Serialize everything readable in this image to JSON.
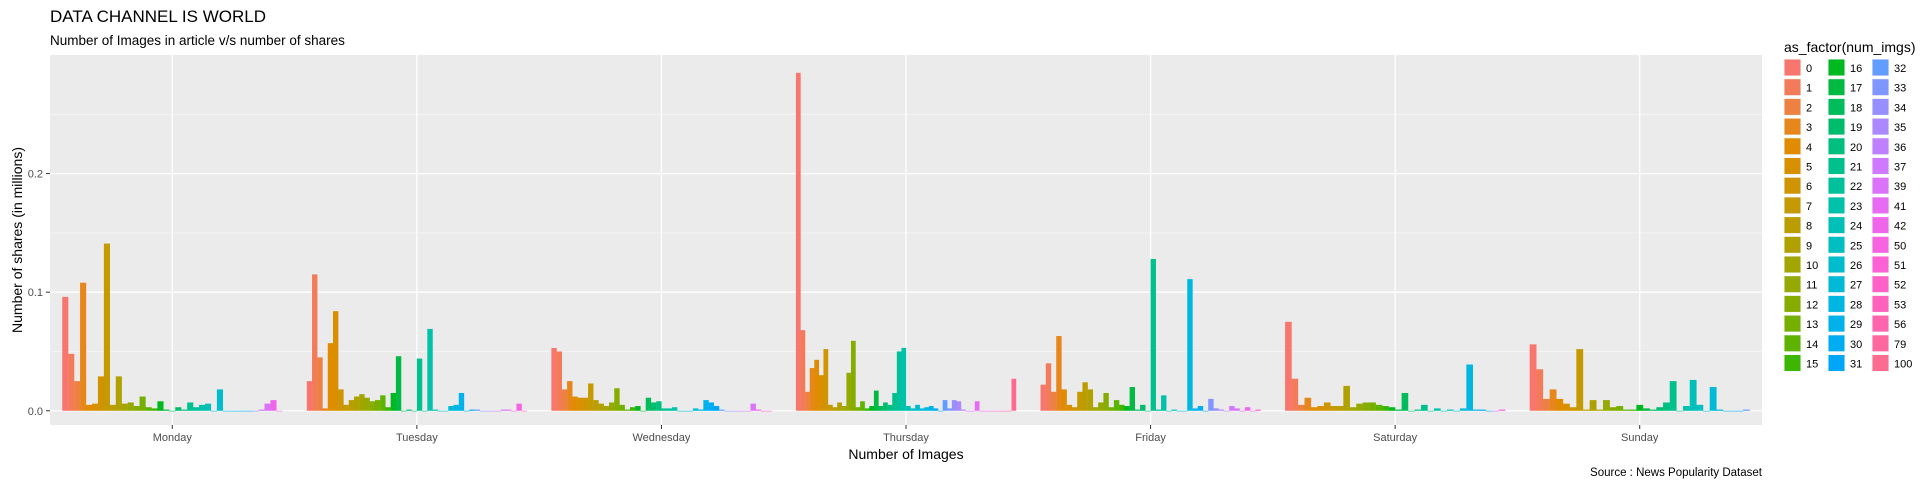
{
  "chart_data": {
    "type": "bar",
    "title": "DATA CHANNEL IS WORLD",
    "subtitle": "Number of Images in article v/s number of shares",
    "xlabel": "Number of Images",
    "ylabel": "Number of shares (in millions)",
    "caption": "Source : News Popularity Dataset",
    "legend_title": "as_factor(num_imgs)",
    "legend_position": "right",
    "grid": true,
    "ylim": [
      -0.012,
      0.3
    ],
    "yticks": [
      0.0,
      0.1,
      0.2
    ],
    "ytick_labels": [
      "0.0",
      "0.1",
      "0.2"
    ],
    "categories": [
      "Monday",
      "Tuesday",
      "Wednesday",
      "Thursday",
      "Friday",
      "Saturday",
      "Sunday"
    ],
    "series_keys": [
      "0",
      "1",
      "2",
      "3",
      "4",
      "5",
      "6",
      "7",
      "8",
      "9",
      "10",
      "11",
      "12",
      "13",
      "14",
      "15",
      "16",
      "17",
      "18",
      "19",
      "20",
      "21",
      "22",
      "23",
      "24",
      "25",
      "26",
      "27",
      "28",
      "29",
      "30",
      "31",
      "32",
      "33",
      "34",
      "35",
      "36",
      "37",
      "39",
      "41",
      "42",
      "50",
      "51",
      "52",
      "53",
      "56",
      "79",
      "100"
    ],
    "series_colors": [
      "#F8766D",
      "#F37B59",
      "#ED8141",
      "#E7861B",
      "#E08B00",
      "#D89000",
      "#CF9400",
      "#C59900",
      "#BB9D00",
      "#B0A100",
      "#A3A500",
      "#95A900",
      "#86AC00",
      "#75AF00",
      "#5EB300",
      "#3DB600",
      "#00B81F",
      "#00BA42",
      "#00BC5A",
      "#00BD6E",
      "#00BF7F",
      "#00C08E",
      "#00C19C",
      "#00C1AA",
      "#00C0B7",
      "#00BFC3",
      "#00BDCE",
      "#00BAD8",
      "#00B6E2",
      "#00B2EB",
      "#00ADF3",
      "#00A7F9",
      "#619CFF",
      "#7F96FF",
      "#978EFF",
      "#AC88FF",
      "#BE80FF",
      "#CE79FF",
      "#DC71FA",
      "#E76BF3",
      "#F066EA",
      "#F763E0",
      "#FC61D5",
      "#FF61C9",
      "#FF62BC",
      "#FF65AE",
      "#FF689F",
      "#FD6C90"
    ],
    "days": [
      {
        "name": "Monday",
        "keys": [
          "0",
          "1",
          "2",
          "3",
          "4",
          "5",
          "6",
          "7",
          "8",
          "9",
          "10",
          "11",
          "12",
          "13",
          "14",
          "15",
          "16",
          "17",
          "18",
          "19",
          "20",
          "21",
          "22",
          "23",
          "24",
          "25",
          "26",
          "27",
          "28",
          "29",
          "30",
          "31",
          "33",
          "37",
          "39",
          "42",
          "50"
        ],
        "values": [
          0.096,
          0.048,
          0.025,
          0.108,
          0.005,
          0.006,
          0.029,
          0.141,
          0.005,
          0.029,
          0.006,
          0.007,
          0.004,
          0.012,
          0.003,
          0.002,
          0.008,
          0.001,
          0.0,
          0.003,
          0.001,
          0.007,
          0.003,
          0.005,
          0.006,
          0.0,
          0.018,
          0.0,
          0.0,
          0.0,
          0.0,
          0.0,
          0.0,
          0.001,
          0.006,
          0.009,
          0.0
        ]
      },
      {
        "name": "Tuesday",
        "keys": [
          "0",
          "1",
          "2",
          "3",
          "4",
          "5",
          "6",
          "7",
          "8",
          "9",
          "10",
          "11",
          "12",
          "13",
          "14",
          "15",
          "16",
          "17",
          "18",
          "19",
          "20",
          "21",
          "22",
          "23",
          "24",
          "25",
          "26",
          "27",
          "28",
          "29",
          "30",
          "31",
          "32",
          "33",
          "34",
          "35",
          "36",
          "37",
          "39",
          "41",
          "50",
          "52"
        ],
        "values": [
          0.025,
          0.115,
          0.045,
          0.002,
          0.057,
          0.084,
          0.018,
          0.005,
          0.009,
          0.012,
          0.014,
          0.011,
          0.008,
          0.009,
          0.013,
          0.003,
          0.015,
          0.046,
          0.0,
          0.001,
          0.0,
          0.044,
          0.0,
          0.069,
          0.001,
          0.0,
          0.0,
          0.004,
          0.005,
          0.015,
          0.0,
          0.001,
          0.001,
          0.0,
          0.0,
          0.0,
          0.0,
          0.001,
          0.001,
          0.0,
          0.006,
          0.0
        ]
      },
      {
        "name": "Wednesday",
        "keys": [
          "0",
          "1",
          "2",
          "3",
          "4",
          "5",
          "6",
          "7",
          "8",
          "9",
          "10",
          "11",
          "12",
          "13",
          "14",
          "15",
          "16",
          "17",
          "18",
          "19",
          "20",
          "21",
          "22",
          "23",
          "24",
          "25",
          "26",
          "27",
          "28",
          "29",
          "30",
          "31",
          "32",
          "33",
          "34",
          "35",
          "36",
          "37",
          "39",
          "42",
          "50",
          "52"
        ],
        "values": [
          0.053,
          0.05,
          0.018,
          0.025,
          0.012,
          0.011,
          0.011,
          0.023,
          0.009,
          0.006,
          0.004,
          0.007,
          0.019,
          0.005,
          0.001,
          0.003,
          0.004,
          0.0,
          0.011,
          0.007,
          0.008,
          0.002,
          0.002,
          0.003,
          0.0,
          0.0,
          0.0,
          0.002,
          0.001,
          0.009,
          0.007,
          0.004,
          0.001,
          0.0,
          0.0,
          0.0,
          0.0,
          0.0,
          0.006,
          0.001,
          0.0,
          0.0
        ]
      },
      {
        "name": "Thursday",
        "keys": [
          "0",
          "1",
          "2",
          "3",
          "4",
          "5",
          "6",
          "7",
          "8",
          "9",
          "10",
          "11",
          "12",
          "13",
          "14",
          "15",
          "16",
          "17",
          "18",
          "19",
          "20",
          "21",
          "22",
          "23",
          "24",
          "25",
          "26",
          "27",
          "28",
          "29",
          "30",
          "31",
          "32",
          "33",
          "34",
          "35",
          "36",
          "37",
          "39",
          "41",
          "42",
          "50",
          "51",
          "52",
          "53",
          "56",
          "79",
          "100"
        ],
        "values": [
          0.285,
          0.068,
          0.016,
          0.036,
          0.043,
          0.03,
          0.052,
          0.005,
          0.003,
          0.007,
          0.004,
          0.032,
          0.059,
          0.003,
          0.008,
          0.002,
          0.004,
          0.017,
          0.004,
          0.007,
          0.005,
          0.015,
          0.05,
          0.053,
          0.004,
          0.002,
          0.005,
          0.002,
          0.003,
          0.004,
          0.002,
          0.0,
          0.009,
          0.002,
          0.009,
          0.008,
          0.001,
          0.0,
          0.0,
          0.008,
          0.0,
          0.0,
          0.0,
          0.0,
          0.0,
          0.0,
          0.0,
          0.027
        ]
      },
      {
        "name": "Friday",
        "keys": [
          "0",
          "1",
          "2",
          "3",
          "4",
          "5",
          "6",
          "7",
          "8",
          "9",
          "10",
          "11",
          "12",
          "13",
          "14",
          "15",
          "16",
          "17",
          "18",
          "19",
          "20",
          "21",
          "22",
          "23",
          "24",
          "25",
          "26",
          "27",
          "28",
          "29",
          "30",
          "31",
          "33",
          "34",
          "35",
          "36",
          "37",
          "39",
          "41",
          "42",
          "50",
          "52"
        ],
        "values": [
          0.022,
          0.04,
          0.016,
          0.063,
          0.018,
          0.005,
          0.003,
          0.016,
          0.024,
          0.018,
          0.003,
          0.007,
          0.015,
          0.003,
          0.009,
          0.005,
          0.004,
          0.02,
          0.001,
          0.005,
          0.0,
          0.128,
          0.001,
          0.013,
          0.0,
          0.001,
          0.0,
          0.0,
          0.111,
          0.002,
          0.004,
          0.0,
          0.01,
          0.002,
          0.001,
          0.0,
          0.004,
          0.002,
          0.0,
          0.003,
          0.0,
          0.001
        ]
      },
      {
        "name": "Saturday",
        "keys": [
          "0",
          "1",
          "2",
          "3",
          "4",
          "5",
          "6",
          "7",
          "8",
          "9",
          "10",
          "11",
          "12",
          "13",
          "14",
          "15",
          "16",
          "17",
          "18",
          "19",
          "20",
          "21",
          "22",
          "23",
          "24",
          "25",
          "26",
          "27",
          "28",
          "29",
          "30",
          "31",
          "37",
          "50"
        ],
        "values": [
          0.075,
          0.027,
          0.005,
          0.011,
          0.003,
          0.004,
          0.007,
          0.004,
          0.004,
          0.021,
          0.003,
          0.006,
          0.007,
          0.007,
          0.005,
          0.004,
          0.003,
          0.001,
          0.015,
          0.0,
          0.001,
          0.005,
          0.0,
          0.002,
          0.0,
          0.001,
          0.0,
          0.002,
          0.039,
          0.001,
          0.001,
          0.0,
          0.0,
          0.001
        ]
      },
      {
        "name": "Sunday",
        "keys": [
          "0",
          "1",
          "2",
          "3",
          "4",
          "5",
          "6",
          "7",
          "8",
          "9",
          "10",
          "11",
          "12",
          "13",
          "14",
          "15",
          "16",
          "17",
          "18",
          "19",
          "20",
          "21",
          "22",
          "23",
          "24",
          "25",
          "26",
          "27",
          "28",
          "29",
          "30",
          "31",
          "32"
        ],
        "values": [
          0.056,
          0.035,
          0.01,
          0.018,
          0.01,
          0.006,
          0.003,
          0.052,
          0.001,
          0.009,
          0.001,
          0.009,
          0.003,
          0.004,
          0.001,
          0.001,
          0.005,
          0.002,
          0.001,
          0.003,
          0.007,
          0.025,
          0.0,
          0.004,
          0.026,
          0.005,
          0.0,
          0.02,
          0.001,
          0.0,
          0.0,
          0.0,
          0.001
        ]
      }
    ]
  }
}
